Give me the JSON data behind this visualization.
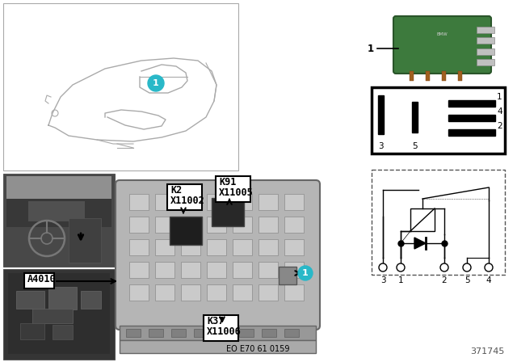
{
  "bg_color": "#ffffff",
  "teal_color": "#29b8c8",
  "figure_num": "371745",
  "doc_ref": "EO E70 61 0159",
  "label_K2": "K2",
  "label_X11002": "X11002",
  "label_K91": "K91",
  "label_X11005": "X11005",
  "label_K37": "K37",
  "label_X11006": "X11006",
  "label_A4010": "A4010",
  "relay_green": "#3d7a3d",
  "relay_dark": "#2a552a",
  "car_line_color": "#aaaaaa",
  "box_bg": "#b8b8b8",
  "fuse_cell": "#c8c8c8"
}
